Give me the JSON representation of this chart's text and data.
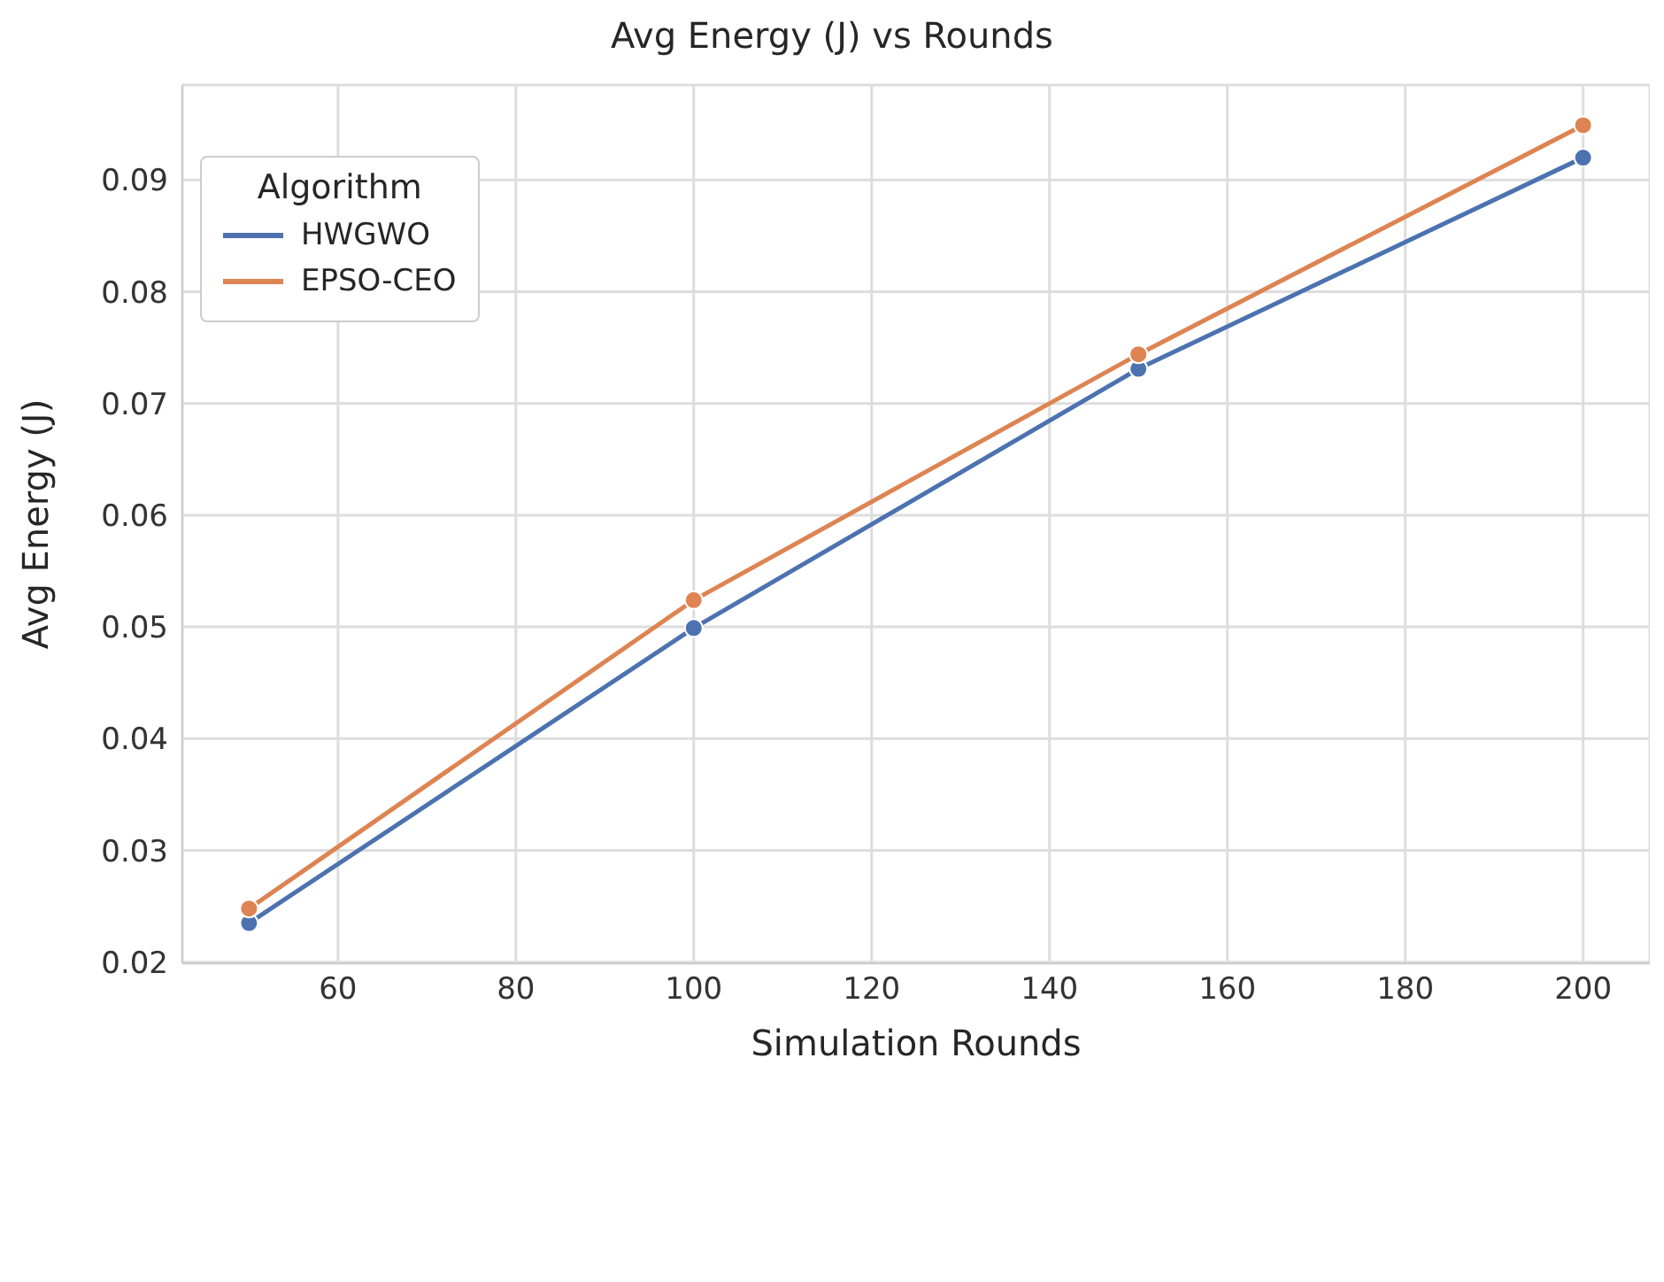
{
  "chart_data": {
    "type": "line",
    "title": "Avg Energy (J) vs Rounds",
    "xlabel": "Simulation Rounds",
    "ylabel": "Avg Energy (J)",
    "legend_title": "Algorithm",
    "x": [
      50,
      100,
      150,
      200
    ],
    "series": [
      {
        "name": "HWGWO",
        "color": "#4c72b0",
        "values": [
          0.0235,
          0.0499,
          0.0731,
          0.092
        ]
      },
      {
        "name": "EPSO-CEO",
        "color": "#dd8452",
        "values": [
          0.0248,
          0.0524,
          0.0744,
          0.0949
        ]
      }
    ],
    "xlim": [
      42.5,
      207.5
    ],
    "xticks": [
      60,
      80,
      100,
      120,
      140,
      160,
      180,
      200
    ],
    "ylim": [
      0.0199,
      0.0985
    ],
    "yticks": [
      0.02,
      0.03,
      0.04,
      0.05,
      0.06,
      0.07,
      0.08,
      0.09
    ],
    "grid": true,
    "legend": "top left",
    "marker": "circle",
    "line_style": "solid"
  }
}
